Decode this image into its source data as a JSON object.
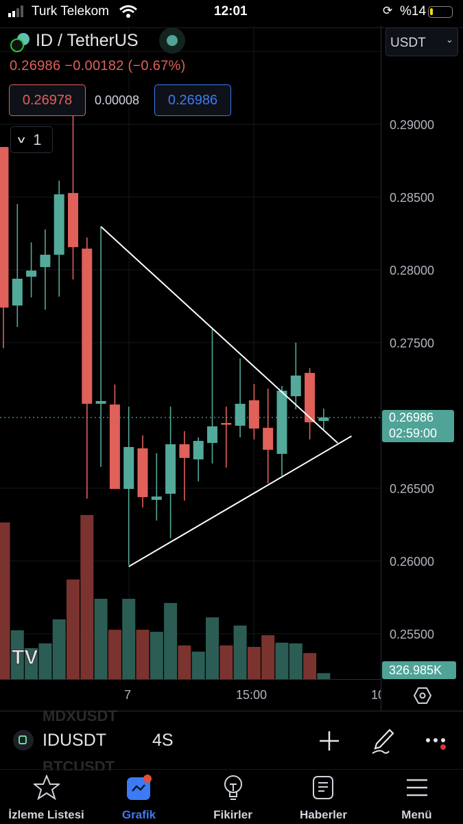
{
  "status_bar": {
    "carrier": "Turk Telekom",
    "time": "12:01",
    "battery": "%14"
  },
  "header": {
    "title": "ID / TetherUS",
    "price": "0.26986",
    "change": "−0.00182 (−0.67%)",
    "bid": "0.26978",
    "spread": "0.00008",
    "ask": "0.26986",
    "indicator_count": "1",
    "currency": "USDT"
  },
  "price_axis": {
    "ticks": [
      "0.29000",
      "0.28500",
      "0.28000",
      "0.27500",
      "0.26500",
      "0.26000",
      "0.25500"
    ],
    "current_price": "0.26986",
    "countdown": "02:59:00",
    "volume_tag": "326.985K"
  },
  "time_axis": {
    "labels": [
      "7",
      "15:00",
      "10"
    ]
  },
  "colors": {
    "up": "#53a99a",
    "down": "#e0605a",
    "volume_up": "#2c5d55",
    "volume_down": "#7b332f",
    "accent": "#3d7bf5"
  },
  "chart_data": {
    "type": "candlestick",
    "symbol": "IDUSDT",
    "interval": "4S",
    "ylim": [
      0.2505,
      0.2945
    ],
    "candles": [
      {
        "o": 0.28844,
        "h": 0.28844,
        "l": 0.27462,
        "c": 0.27741,
        "v": 8600
      },
      {
        "o": 0.27755,
        "h": 0.28453,
        "l": 0.27608,
        "c": 0.27939,
        "v": 2680
      },
      {
        "o": 0.27953,
        "h": 0.28189,
        "l": 0.27811,
        "c": 0.27995,
        "v": 1700
      },
      {
        "o": 0.28019,
        "h": 0.28278,
        "l": 0.27726,
        "c": 0.28104,
        "v": 1960
      },
      {
        "o": 0.28104,
        "h": 0.28613,
        "l": 0.27816,
        "c": 0.28519,
        "v": 3280
      },
      {
        "o": 0.28528,
        "h": 0.2912,
        "l": 0.27934,
        "c": 0.28156,
        "v": 5470
      },
      {
        "o": 0.28146,
        "h": 0.28222,
        "l": 0.26429,
        "c": 0.2708,
        "v": 9010
      },
      {
        "o": 0.2708,
        "h": 0.28297,
        "l": 0.26646,
        "c": 0.27099,
        "v": 4410
      },
      {
        "o": 0.27075,
        "h": 0.27212,
        "l": 0.26495,
        "c": 0.26495,
        "v": 2710
      },
      {
        "o": 0.26495,
        "h": 0.27061,
        "l": 0.25972,
        "c": 0.26783,
        "v": 4410
      },
      {
        "o": 0.26774,
        "h": 0.26863,
        "l": 0.26368,
        "c": 0.26439,
        "v": 2710
      },
      {
        "o": 0.2642,
        "h": 0.26741,
        "l": 0.26278,
        "c": 0.26443,
        "v": 2600
      },
      {
        "o": 0.26462,
        "h": 0.27061,
        "l": 0.26156,
        "c": 0.26802,
        "v": 4180
      },
      {
        "o": 0.26802,
        "h": 0.26892,
        "l": 0.26415,
        "c": 0.26708,
        "v": 1850
      },
      {
        "o": 0.26698,
        "h": 0.26849,
        "l": 0.26547,
        "c": 0.26825,
        "v": 1510
      },
      {
        "o": 0.26811,
        "h": 0.27594,
        "l": 0.2667,
        "c": 0.26925,
        "v": 3390
      },
      {
        "o": 0.26948,
        "h": 0.27061,
        "l": 0.26642,
        "c": 0.26939,
        "v": 1850
      },
      {
        "o": 0.26929,
        "h": 0.27392,
        "l": 0.26849,
        "c": 0.2708,
        "v": 2940
      },
      {
        "o": 0.27104,
        "h": 0.27217,
        "l": 0.26835,
        "c": 0.2691,
        "v": 1770
      },
      {
        "o": 0.26915,
        "h": 0.27184,
        "l": 0.26533,
        "c": 0.26764,
        "v": 2410
      },
      {
        "o": 0.26736,
        "h": 0.27203,
        "l": 0.26585,
        "c": 0.2717,
        "v": 2000
      },
      {
        "o": 0.27132,
        "h": 0.275,
        "l": 0.27042,
        "c": 0.27274,
        "v": 1960
      },
      {
        "o": 0.27292,
        "h": 0.27325,
        "l": 0.26835,
        "c": 0.26953,
        "v": 1430
      },
      {
        "o": 0.26962,
        "h": 0.27047,
        "l": 0.26906,
        "c": 0.26986,
        "v": 326.985
      }
    ],
    "trendlines": [
      {
        "from": [
          7,
          0.28297
        ],
        "to": [
          24,
          0.26811
        ]
      },
      {
        "from": [
          9,
          0.25962
        ],
        "to": [
          25,
          0.26858
        ]
      }
    ]
  },
  "symbol_bar": {
    "symbol": "IDUSDT",
    "interval": "4S",
    "prev_symbol": "MDXUSDT",
    "next_symbol": "BTCUSDT"
  },
  "tabs": [
    {
      "label": "İzleme Listesi",
      "icon": "star-icon"
    },
    {
      "label": "Grafik",
      "icon": "chart-icon",
      "active": true
    },
    {
      "label": "Fikirler",
      "icon": "lightbulb-icon"
    },
    {
      "label": "Haberler",
      "icon": "news-icon"
    },
    {
      "label": "Menü",
      "icon": "menu-icon"
    }
  ]
}
